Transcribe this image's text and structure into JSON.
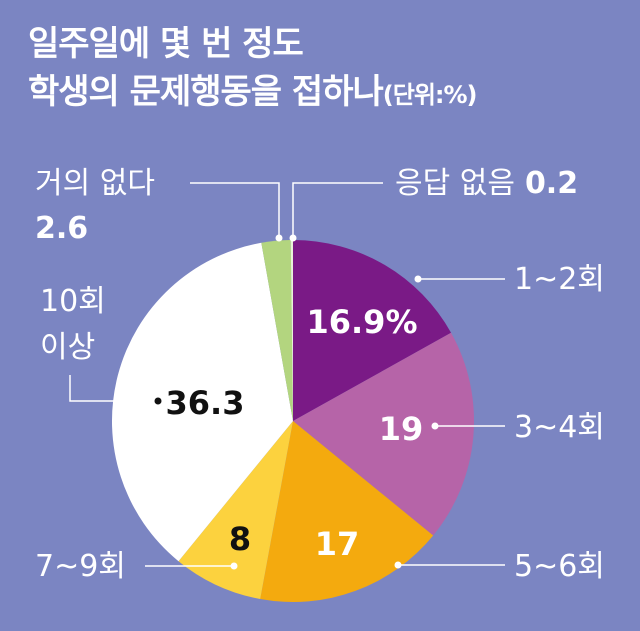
{
  "title": {
    "line1": "일주일에 몇 번 정도",
    "line2": "학생의 문제행동을 접하나",
    "unit": "(단위:%)"
  },
  "chart_data": {
    "type": "pie",
    "title": "일주일에 몇 번 정도 학생의 문제행동을 접하나",
    "unit": "(단위:%)",
    "slices": [
      {
        "label": "1~2회",
        "value": 16.9,
        "value_text": "16.9%",
        "color": "#7a1a86"
      },
      {
        "label": "3~4회",
        "value": 19,
        "value_text": "19",
        "color": "#b664a8"
      },
      {
        "label": "5~6회",
        "value": 17,
        "value_text": "17",
        "color": "#f4aa0e"
      },
      {
        "label": "7~9회",
        "value": 8,
        "value_text": "8",
        "color": "#fcd23e"
      },
      {
        "label": "10회 이상",
        "label_lines": [
          "10회",
          "이상"
        ],
        "value": 36.3,
        "value_text": "36.3",
        "color": "#ffffff"
      },
      {
        "label": "거의 없다",
        "value": 2.6,
        "value_text": "2.6",
        "color": "#b3d57f"
      },
      {
        "label": "응답 없음",
        "value": 0.2,
        "value_text": "0.2",
        "color": "#e9f2d8"
      }
    ]
  }
}
